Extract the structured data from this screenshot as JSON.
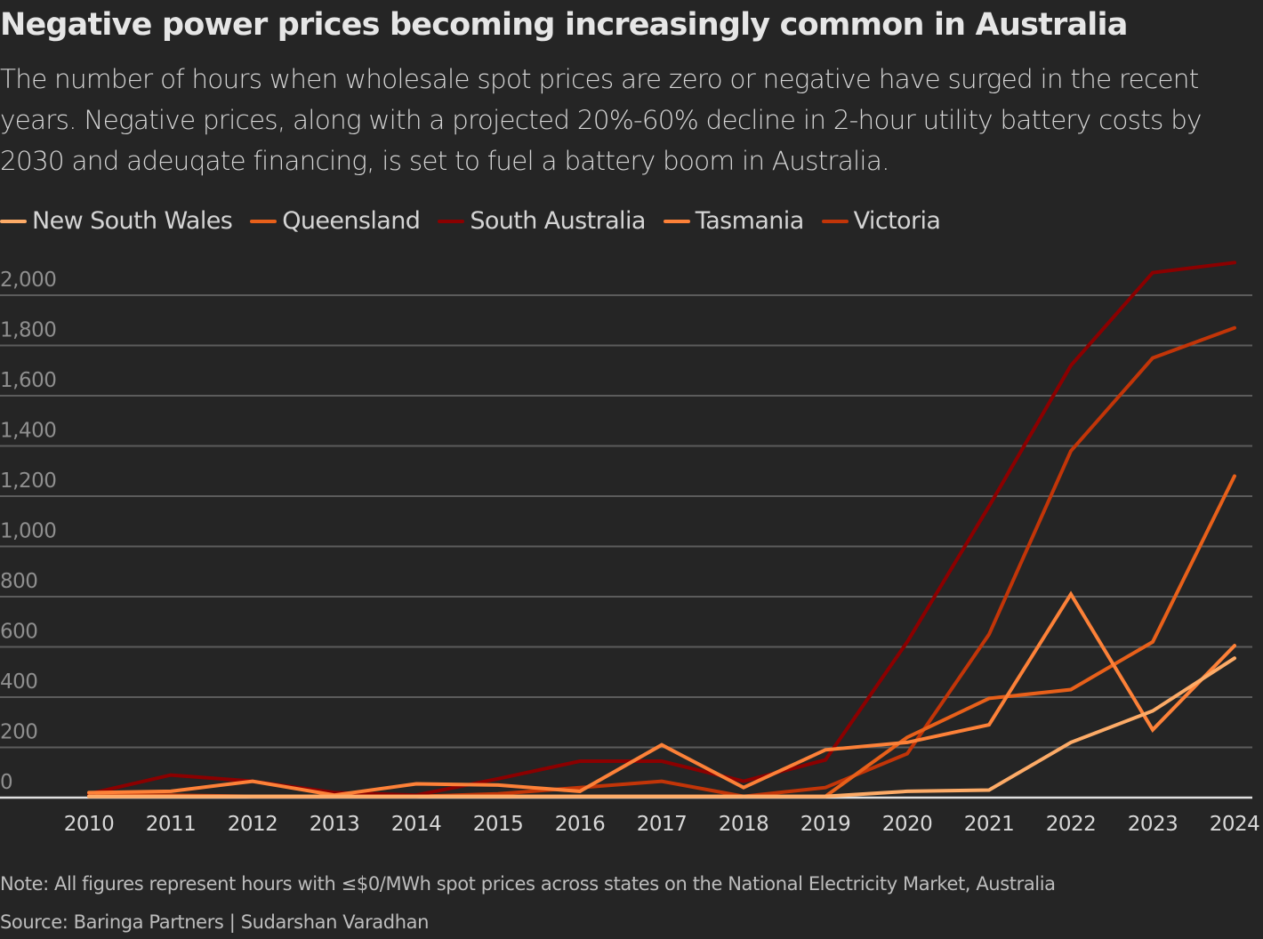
{
  "header": {
    "title": "Negative power prices becoming increasingly common in Australia",
    "subtitle": "The number of hours when wholesale spot prices are zero or negative have surged in the recent years. Negative prices, along with a projected 20%-60% decline in 2-hour utility battery costs by 2030 and adeuqate financing, is set to fuel a battery boom in Australia."
  },
  "footer": {
    "note": "Note: All figures represent hours with ≤$0/MWh spot prices across states on the National Electricity Market, Australia",
    "source": "Source: Baringa Partners | Sudarshan Varadhan"
  },
  "chart_data": {
    "type": "line",
    "title": "Negative power prices becoming increasingly common in Australia",
    "xlabel": "",
    "ylabel": "",
    "x": [
      2010,
      2011,
      2012,
      2013,
      2014,
      2015,
      2016,
      2017,
      2018,
      2019,
      2020,
      2021,
      2022,
      2023,
      2024
    ],
    "x_tick_labels": [
      "2010",
      "2011",
      "2012",
      "2013",
      "2014",
      "2015",
      "2016",
      "2017",
      "2018",
      "2019",
      "2020",
      "2021",
      "2022",
      "2023",
      "2024"
    ],
    "y_ticks": [
      0,
      200,
      400,
      600,
      800,
      1000,
      1200,
      1400,
      1600,
      1800,
      2000
    ],
    "y_tick_labels": [
      "0",
      "200",
      "400",
      "600",
      "800",
      "1,000",
      "1,200",
      "1,400",
      "1,600",
      "1,800",
      "2,000"
    ],
    "ylim": [
      0,
      2150
    ],
    "grid": true,
    "legend_position": "top-left",
    "series": [
      {
        "name": "New South Wales",
        "color": "#fdab67",
        "values": [
          5,
          5,
          5,
          5,
          5,
          5,
          5,
          5,
          5,
          5,
          25,
          30,
          220,
          345,
          555
        ]
      },
      {
        "name": "Queensland",
        "color": "#e8601a",
        "values": [
          5,
          5,
          5,
          5,
          5,
          5,
          5,
          5,
          5,
          5,
          240,
          395,
          430,
          620,
          1280
        ]
      },
      {
        "name": "South Australia",
        "color": "#8b0000",
        "values": [
          15,
          90,
          65,
          20,
          10,
          75,
          145,
          145,
          65,
          150,
          620,
          1160,
          1720,
          2090,
          2130
        ]
      },
      {
        "name": "Tasmania",
        "color": "#fd8138",
        "values": [
          20,
          25,
          65,
          10,
          55,
          50,
          25,
          210,
          40,
          190,
          220,
          290,
          810,
          270,
          605
        ]
      },
      {
        "name": "Victoria",
        "color": "#c23508",
        "values": [
          10,
          10,
          5,
          5,
          5,
          15,
          40,
          65,
          5,
          40,
          175,
          650,
          1380,
          1750,
          1870
        ]
      }
    ]
  }
}
